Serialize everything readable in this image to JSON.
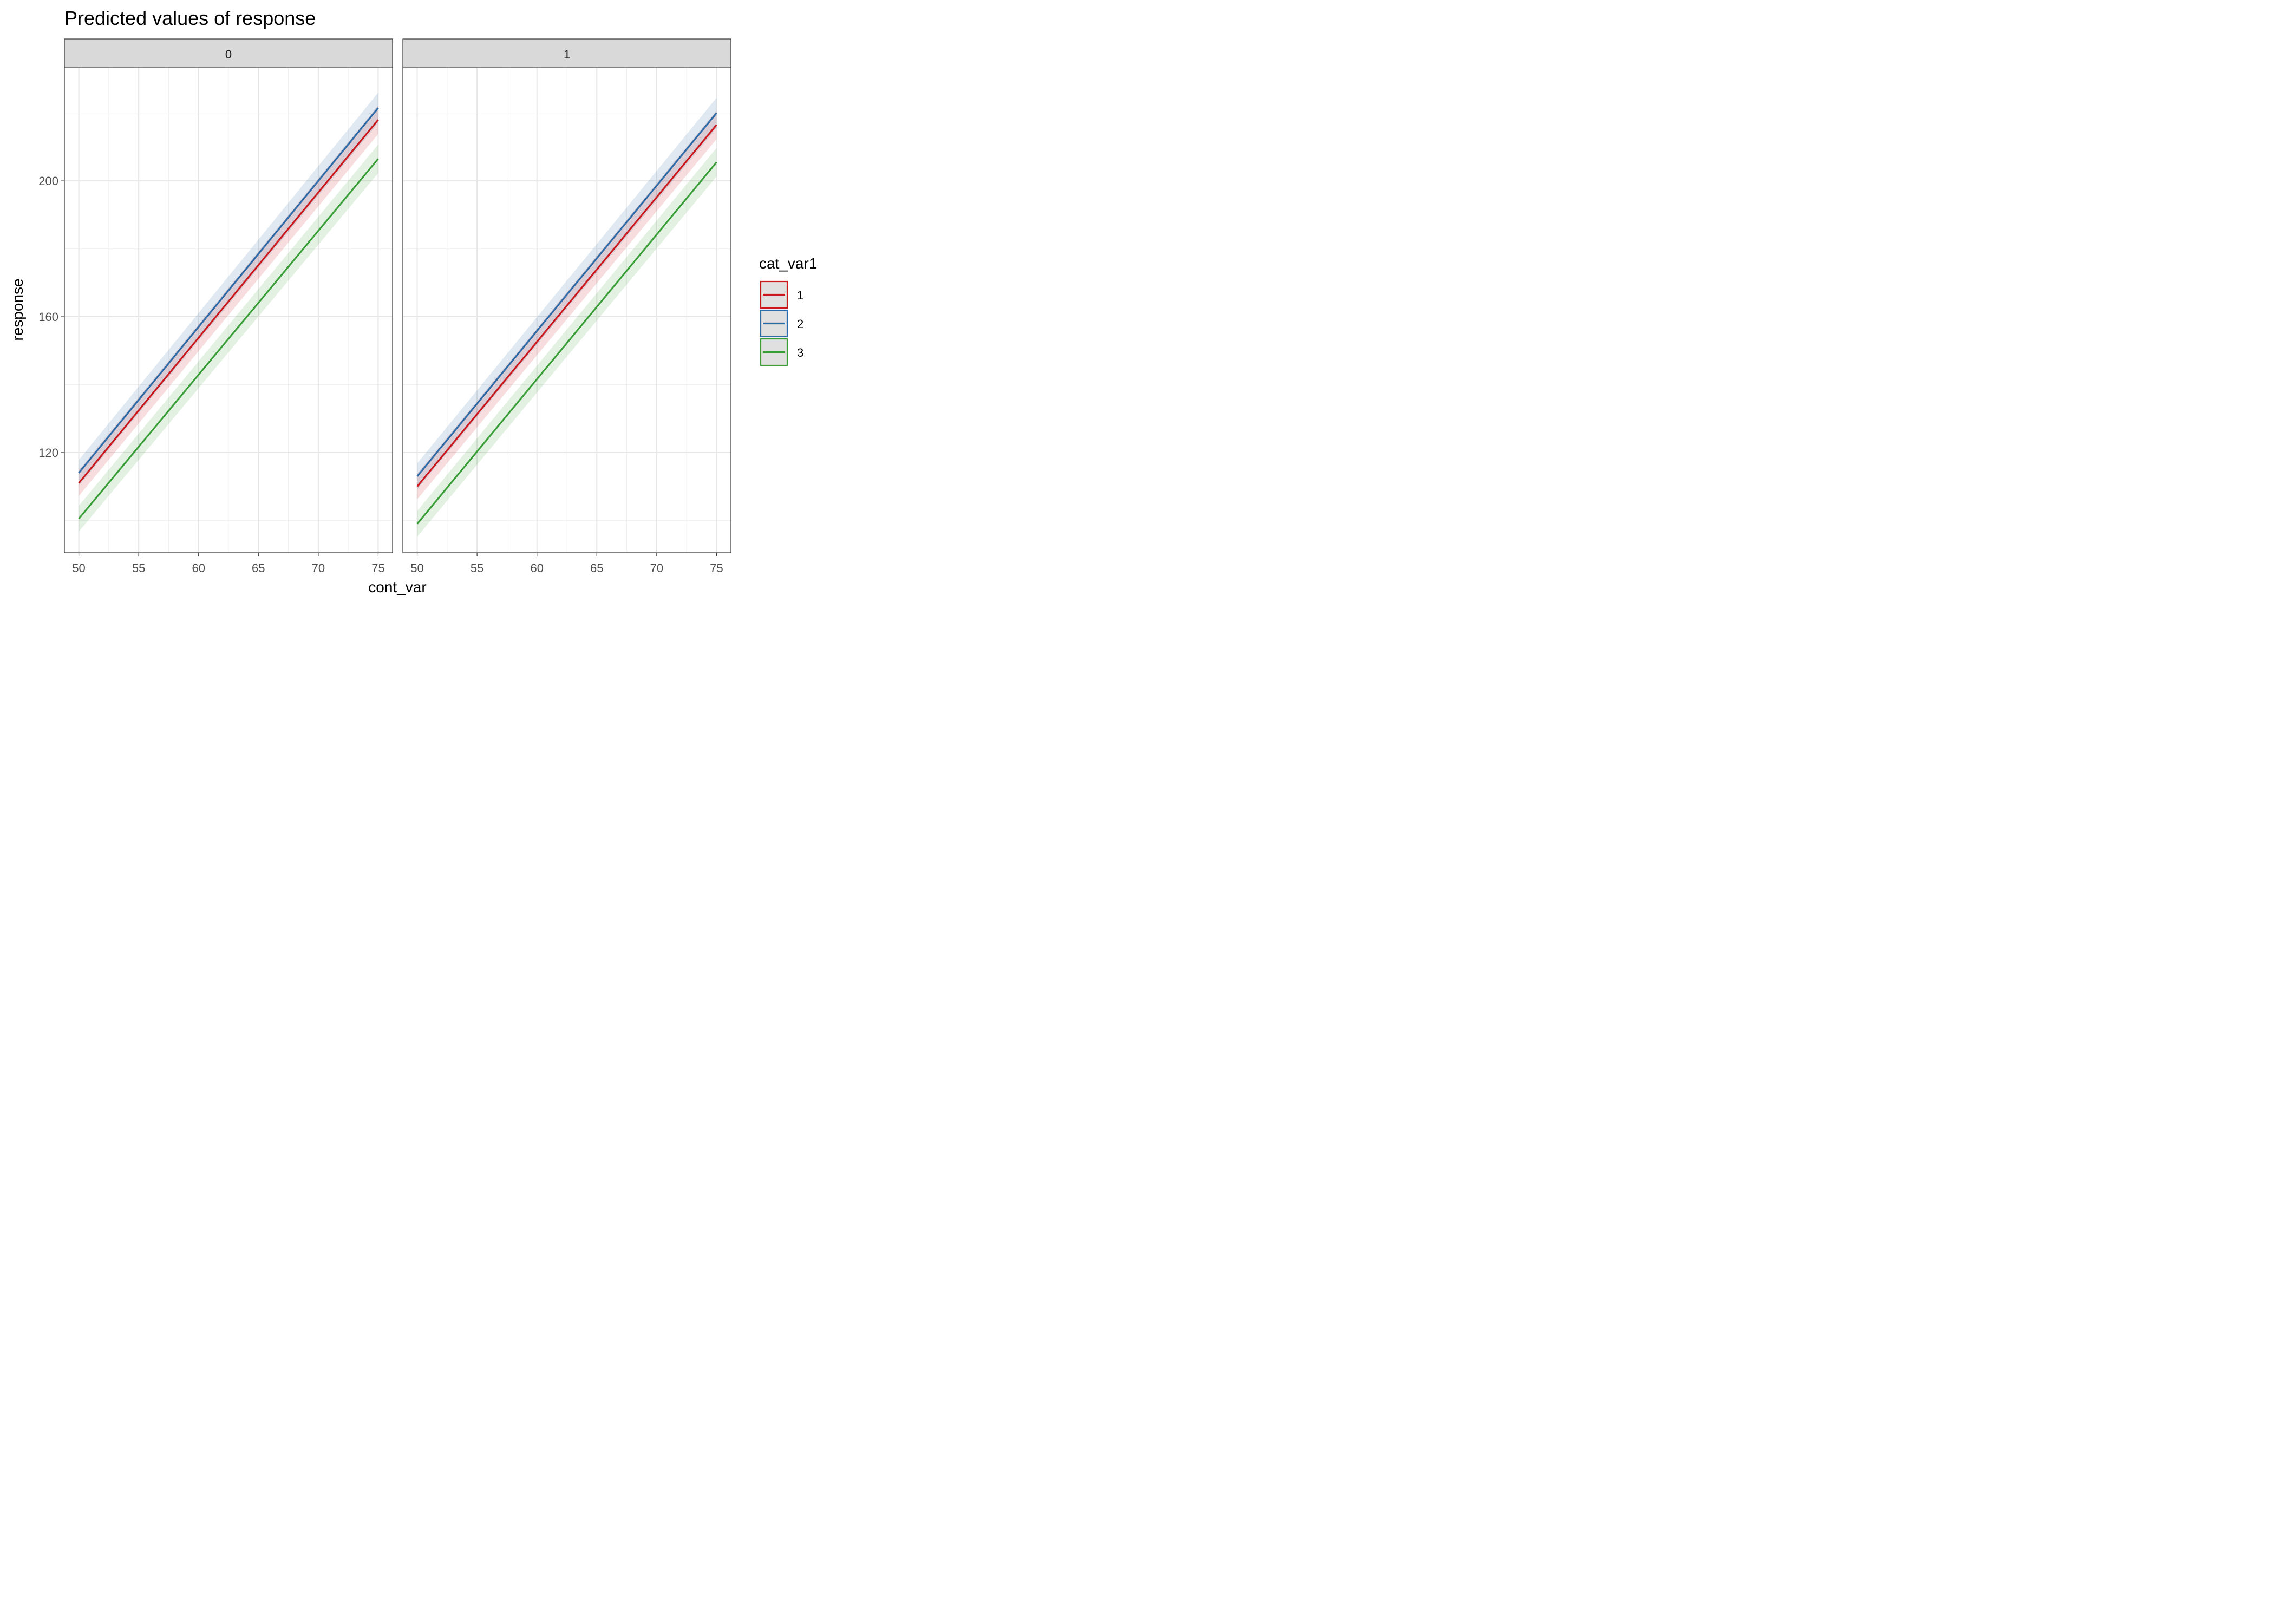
{
  "chart_data": {
    "type": "line",
    "title": "Predicted values of response",
    "xlabel": "cont_var",
    "ylabel": "response",
    "x_ticks": [
      50,
      55,
      60,
      65,
      70,
      75
    ],
    "y_ticks": [
      120,
      160,
      200
    ],
    "xlim": [
      48.8,
      76.2
    ],
    "ylim": [
      90.5,
      233.5
    ],
    "grid": true,
    "legend": {
      "title": "cat_var1",
      "position": "right",
      "items": [
        {
          "label": "1",
          "color": "#CB181D"
        },
        {
          "label": "2",
          "color": "#2C6AA8"
        },
        {
          "label": "3",
          "color": "#3A9E38"
        }
      ]
    },
    "panels": [
      {
        "facet": "0",
        "series": [
          {
            "name": "1",
            "color": "#CB181D",
            "x": [
              50,
              75
            ],
            "y": [
              111.0,
              218.0
            ],
            "ci_halfwidth": [
              3.8,
              4.2
            ]
          },
          {
            "name": "2",
            "color": "#2C6AA8",
            "x": [
              50,
              75
            ],
            "y": [
              114.0,
              221.5
            ],
            "ci_halfwidth": [
              3.8,
              4.5
            ]
          },
          {
            "name": "3",
            "color": "#3A9E38",
            "x": [
              50,
              75
            ],
            "y": [
              100.5,
              206.5
            ],
            "ci_halfwidth": [
              3.8,
              4.2
            ]
          }
        ]
      },
      {
        "facet": "1",
        "series": [
          {
            "name": "1",
            "color": "#CB181D",
            "x": [
              50,
              75
            ],
            "y": [
              110.0,
              216.5
            ],
            "ci_halfwidth": [
              3.8,
              4.2
            ]
          },
          {
            "name": "2",
            "color": "#2C6AA8",
            "x": [
              50,
              75
            ],
            "y": [
              113.0,
              220.0
            ],
            "ci_halfwidth": [
              3.8,
              4.5
            ]
          },
          {
            "name": "3",
            "color": "#3A9E38",
            "x": [
              50,
              75
            ],
            "y": [
              99.0,
              205.5
            ],
            "ci_halfwidth": [
              3.8,
              4.2
            ]
          }
        ]
      }
    ]
  }
}
